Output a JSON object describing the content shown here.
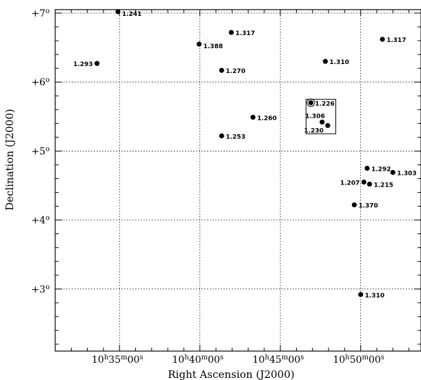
{
  "chart_data": {
    "type": "scatter",
    "title": "",
    "xlabel": "Right Ascension (J2000)",
    "ylabel": "Declination (J2000)",
    "xlim_min": [
      31.0,
      53.75
    ],
    "ylim_deg": [
      2.1,
      7.05
    ],
    "x_direction": "increasing to the right",
    "grid": true,
    "x_ticks": [
      {
        "min": 35,
        "h": "10",
        "m": "35",
        "s": "00"
      },
      {
        "min": 40,
        "h": "10",
        "m": "40",
        "s": "00"
      },
      {
        "min": 45,
        "h": "10",
        "m": "45",
        "s": "00"
      },
      {
        "min": 50,
        "h": "10",
        "m": "50",
        "s": "00"
      }
    ],
    "y_ticks": [
      {
        "deg": 3,
        "label": "+3"
      },
      {
        "deg": 4,
        "label": "+4"
      },
      {
        "deg": 5,
        "label": "+5"
      },
      {
        "deg": 6,
        "label": "+6"
      },
      {
        "deg": 7,
        "label": "+7"
      }
    ],
    "units": {
      "hour": "h",
      "minute": "m",
      "second": "s",
      "degree": "o"
    },
    "points": [
      {
        "ra_min": 34.9,
        "dec": 7.02,
        "label": "1.241",
        "label_pos": "right-below"
      },
      {
        "ra_min": 33.6,
        "dec": 6.27,
        "label": "1.293",
        "label_pos": "left"
      },
      {
        "ra_min": 39.95,
        "dec": 6.55,
        "label": "1.388",
        "label_pos": "right-below"
      },
      {
        "ra_min": 41.95,
        "dec": 6.72,
        "label": "1.317",
        "label_pos": "right"
      },
      {
        "ra_min": 41.35,
        "dec": 6.17,
        "label": "1.270",
        "label_pos": "right"
      },
      {
        "ra_min": 43.3,
        "dec": 5.49,
        "label": "1.260",
        "label_pos": "right"
      },
      {
        "ra_min": 41.35,
        "dec": 5.22,
        "label": "1.253",
        "label_pos": "right"
      },
      {
        "ra_min": 46.9,
        "dec": 5.7,
        "label": "1.226",
        "label_pos": "right",
        "ring": true
      },
      {
        "ra_min": 47.6,
        "dec": 5.42,
        "label": "1.306",
        "label_pos": "above-left"
      },
      {
        "ra_min": 47.95,
        "dec": 5.37,
        "label": "1.230",
        "label_pos": "below-left"
      },
      {
        "ra_min": 47.8,
        "dec": 6.3,
        "label": "1.310",
        "label_pos": "right"
      },
      {
        "ra_min": 51.35,
        "dec": 6.62,
        "label": "1.317",
        "label_pos": "right"
      },
      {
        "ra_min": 50.4,
        "dec": 4.75,
        "label": "1.292",
        "label_pos": "right"
      },
      {
        "ra_min": 52.0,
        "dec": 4.69,
        "label": "1.303",
        "label_pos": "right"
      },
      {
        "ra_min": 50.2,
        "dec": 4.55,
        "label": "1.207",
        "label_pos": "left"
      },
      {
        "ra_min": 50.55,
        "dec": 4.52,
        "label": "1.215",
        "label_pos": "right"
      },
      {
        "ra_min": 49.6,
        "dec": 4.22,
        "label": "1.370",
        "label_pos": "right"
      },
      {
        "ra_min": 50.0,
        "dec": 2.92,
        "label": "1.310",
        "label_pos": "right"
      }
    ],
    "highlight_box": {
      "ra_min": [
        46.6,
        48.45
      ],
      "dec": [
        5.25,
        5.75
      ]
    }
  }
}
